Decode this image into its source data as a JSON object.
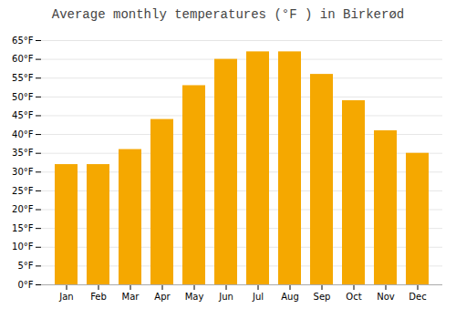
{
  "chart_data": {
    "type": "bar",
    "title": "Average monthly temperatures (°F ) in Birkerød",
    "categories": [
      "Jan",
      "Feb",
      "Mar",
      "Apr",
      "May",
      "Jun",
      "Jul",
      "Aug",
      "Sep",
      "Oct",
      "Nov",
      "Dec"
    ],
    "values": [
      32,
      32,
      36,
      44,
      53,
      60,
      62,
      62,
      56,
      49,
      41,
      35
    ],
    "color": "#F5A800",
    "ylim": [
      0,
      65
    ],
    "yticks": [
      {
        "value": 0,
        "label": "0°F"
      },
      {
        "value": 5,
        "label": "5°F"
      },
      {
        "value": 10,
        "label": "10°F"
      },
      {
        "value": 15,
        "label": "15°F"
      },
      {
        "value": 20,
        "label": "20°F"
      },
      {
        "value": 25,
        "label": "25°F"
      },
      {
        "value": 30,
        "label": "30°F"
      },
      {
        "value": 35,
        "label": "35°F"
      },
      {
        "value": 40,
        "label": "40°F"
      },
      {
        "value": 45,
        "label": "45°F"
      },
      {
        "value": 50,
        "label": "50°F"
      },
      {
        "value": 55,
        "label": "55°F"
      },
      {
        "value": 60,
        "label": "60°F"
      },
      {
        "value": 65,
        "label": "65°F"
      }
    ],
    "grid": true
  }
}
